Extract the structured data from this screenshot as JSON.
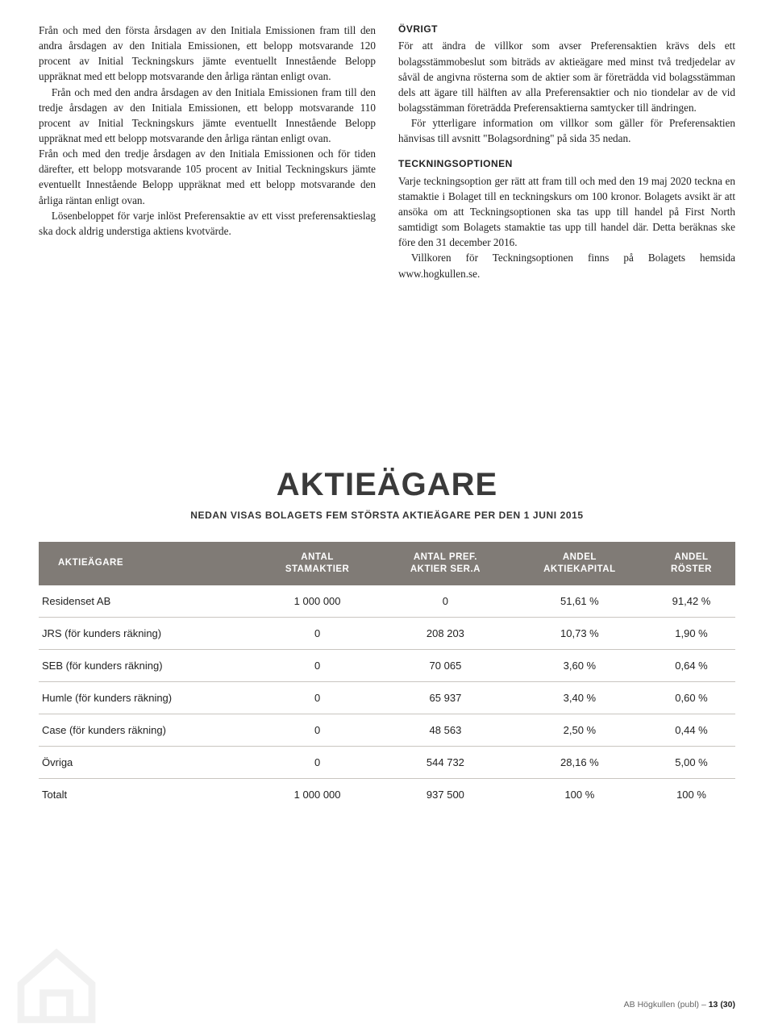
{
  "left": {
    "p1": "Från och med den första årsdagen av den Initiala Emissionen fram till den andra årsdagen av den Initiala Emissionen, ett belopp motsvarande 120 procent av Initial Teckningskurs jämte eventuellt Innestående Belopp uppräknat med ett belopp motsvarande den årliga räntan enligt ovan.",
    "p2": "Från och med den andra årsdagen av den Initiala Emissionen fram till den tredje årsdagen av den Initiala Emissionen, ett belopp motsvarande 110 procent av Initial Teckningskurs jämte eventuellt Innestående Belopp uppräknat med ett belopp motsvarande den årliga räntan enligt ovan.",
    "p3": "Från och med den tredje årsdagen av den Initiala Emissionen och för tiden därefter, ett belopp motsvarande 105 procent av Initial Teckningskurs jämte eventuellt Innestående Belopp uppräknat med ett belopp motsvarande den årliga räntan enligt ovan.",
    "p4": "Lösenbeloppet för varje inlöst Preferensaktie av ett visst preferensaktieslag ska dock aldrig understiga aktiens kvotvärde."
  },
  "right": {
    "h1": "ÖVRIGT",
    "p1": "För att ändra de villkor som avser Preferensaktien krävs dels ett bolagsstämmobeslut som biträds av aktieägare med minst två tredjedelar av såväl de angivna rösterna som de aktier som är företrädda vid bolagsstämman dels att ägare till hälften av alla Preferensaktier och nio tiondelar av de vid bolagsstämman företrädda Preferensaktierna samtycker till ändringen.",
    "p2": "För ytterligare information om villkor som gäller för Preferensaktien hänvisas till avsnitt \"Bolagsordning\" på sida 35 nedan.",
    "h2": "TECKNINGSOPTIONEN",
    "p3": "Varje teckningsoption ger rätt att fram till och med den 19 maj 2020 teckna en stamaktie i Bolaget till en teckningskurs om 100 kronor. Bolagets avsikt är att ansöka om att Teckningsoptionen ska tas upp till handel på First North samtidigt som Bolagets stamaktie tas upp till handel där. Detta beräknas ske före den 31 december 2016.",
    "p4": "Villkoren för Teckningsoptionen finns på Bolagets hemsida www.hogkullen.se."
  },
  "title": "AKTIEÄGARE",
  "subtitle": "NEDAN VISAS BOLAGETS FEM STÖRSTA AKTIEÄGARE PER DEN 1 JUNI 2015",
  "table": {
    "headers": {
      "c1": "AKTIEÄGARE",
      "c2a": "ANTAL",
      "c2b": "STAMAKTIER",
      "c3a": "ANTAL PREF.",
      "c3b": "AKTIER SER.A",
      "c4a": "ANDEL",
      "c4b": "AKTIEKAPITAL",
      "c5a": "ANDEL",
      "c5b": "RÖSTER"
    },
    "rows": [
      [
        "Residenset AB",
        "1 000 000",
        "0",
        "51,61 %",
        "91,42 %"
      ],
      [
        "JRS (för kunders räkning)",
        "0",
        "208 203",
        "10,73 %",
        "1,90 %"
      ],
      [
        "SEB (för kunders räkning)",
        "0",
        "70 065",
        "3,60 %",
        "0,64 %"
      ],
      [
        "Humle (för kunders räkning)",
        "0",
        "65 937",
        "3,40 %",
        "0,60 %"
      ],
      [
        "Case (för kunders räkning)",
        "0",
        "48 563",
        "2,50 %",
        "0,44 %"
      ],
      [
        "Övriga",
        "0",
        "544 732",
        "28,16 %",
        "5,00 %"
      ],
      [
        "Totalt",
        "1 000 000",
        "937 500",
        "100 %",
        "100 %"
      ]
    ]
  },
  "footer": {
    "company": "AB Högkullen (publ)",
    "sep": "–",
    "page": "13 (30)"
  },
  "colors": {
    "header_bg": "#807b76",
    "header_fg": "#ffffff",
    "row_border": "#c9c5c0",
    "text": "#222222",
    "title": "#3a3a3a"
  }
}
